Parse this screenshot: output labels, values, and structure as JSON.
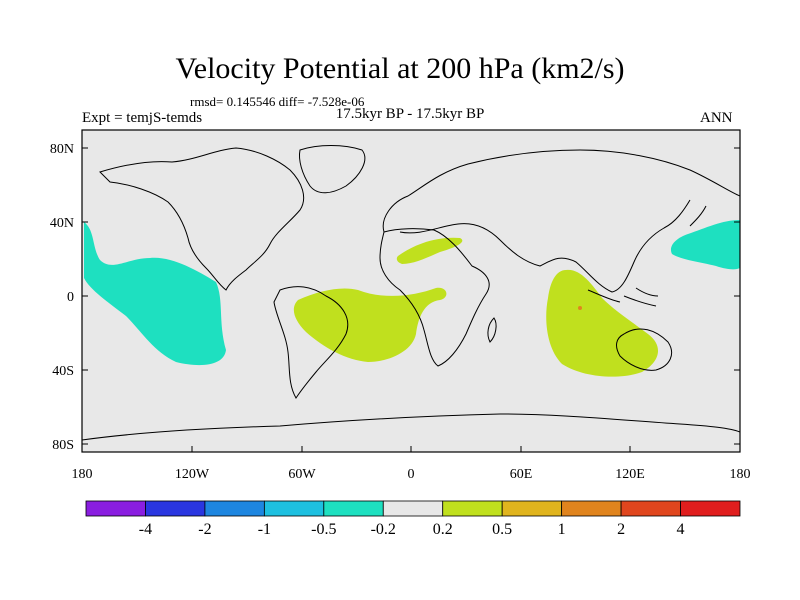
{
  "title": "Velocity Potential at 200 hPa (km2/s)",
  "stats": "rmsd= 0.145546 diff= -7.528e-06",
  "left_label": "Expt = temjS-temds",
  "center_label": "17.5kyr BP - 17.5kyr BP",
  "right_label": "ANN",
  "y_ticks": [
    "80N",
    "40N",
    "0",
    "40S",
    "80S"
  ],
  "x_ticks": [
    "180",
    "120W",
    "60W",
    "0",
    "60E",
    "120E",
    "180"
  ],
  "colorbar": {
    "colors": [
      "#8a1ee0",
      "#2a36e0",
      "#1e86e0",
      "#1ec0e0",
      "#1ee0c0",
      "#e8e8e8",
      "#c0e01e",
      "#e0b41e",
      "#e0841e",
      "#e0461e",
      "#e01e1e"
    ],
    "labels": [
      "-4",
      "-2",
      "-1",
      "-0.5",
      "-0.2",
      "0.2",
      "0.5",
      "1",
      "2",
      "4"
    ]
  },
  "colors": {
    "background": "#e8e8e8",
    "negative_fill": "#1ee0c0",
    "positive_fill": "#c0e01e",
    "coast": "#000000"
  }
}
